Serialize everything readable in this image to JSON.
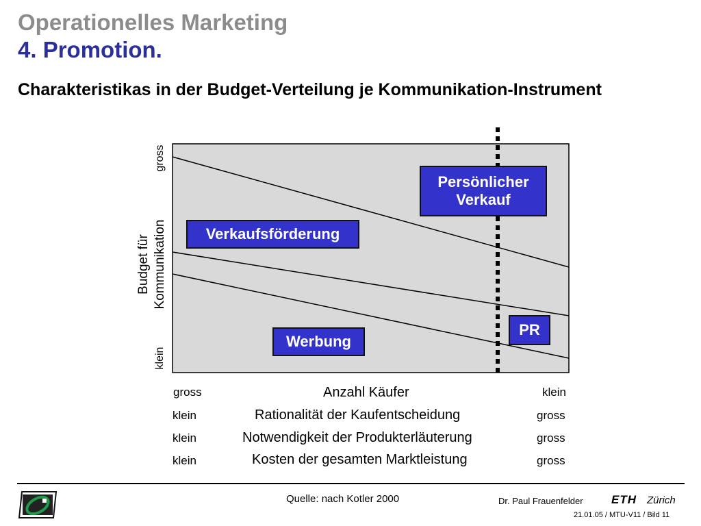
{
  "header": {
    "title_gray": "Operationelles Marketing",
    "title_blue": "4. Promotion.",
    "subtitle": "Charakteristikas in der Budget-Verteilung je Kommunikation-Instrument"
  },
  "diagram": {
    "y_axis": {
      "label_line1": "Budget für",
      "label_line2": "Kommunikation",
      "top": "gross",
      "bottom": "klein"
    },
    "boxes": {
      "persoenlicher_verkauf": [
        "Persönlicher",
        "Verkauf"
      ],
      "verkaufsfoerderung": "Verkaufsförderung",
      "werbung": "Werbung",
      "pr": "PR"
    },
    "rows": [
      {
        "left": "gross",
        "center": "Anzahl Käufer",
        "right": "klein"
      },
      {
        "left": "klein",
        "center": "Rationalität der Kaufentscheidung",
        "right": "gross"
      },
      {
        "left": "klein",
        "center": "Notwendigkeit der Produkterläuterung",
        "right": "gross"
      },
      {
        "left": "klein",
        "center": "Kosten der gesamten Marktleistung",
        "right": "gross"
      }
    ],
    "colors": {
      "plot_bg": "#d9d9d9",
      "box_fill": "#3333cc",
      "title_blue": "#2a2f9c",
      "title_gray": "#8c8c8c"
    }
  },
  "footer": {
    "source": "Quelle: nach Kotler 2000",
    "author": "Dr. Paul Frauenfelder",
    "eth": "ETH",
    "zurich": "Zürich",
    "slide_info": "21.01.05 / MTU-V11 / Bild 11"
  }
}
